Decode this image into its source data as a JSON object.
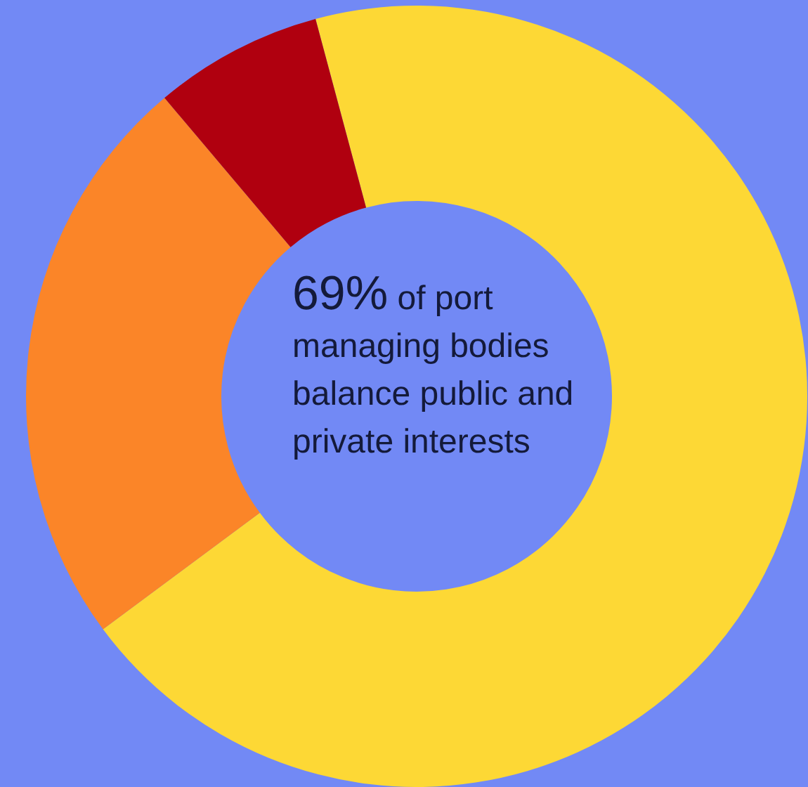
{
  "chart_data": {
    "type": "donut",
    "categories": [
      null,
      null,
      null
    ],
    "values": [
      69,
      24,
      7
    ],
    "colors": [
      "#fdd835",
      "#fb8528",
      "#b0000f"
    ],
    "annotations": [
      "69% of port managing bodies balance public and private interests"
    ],
    "legend": false
  }
}
